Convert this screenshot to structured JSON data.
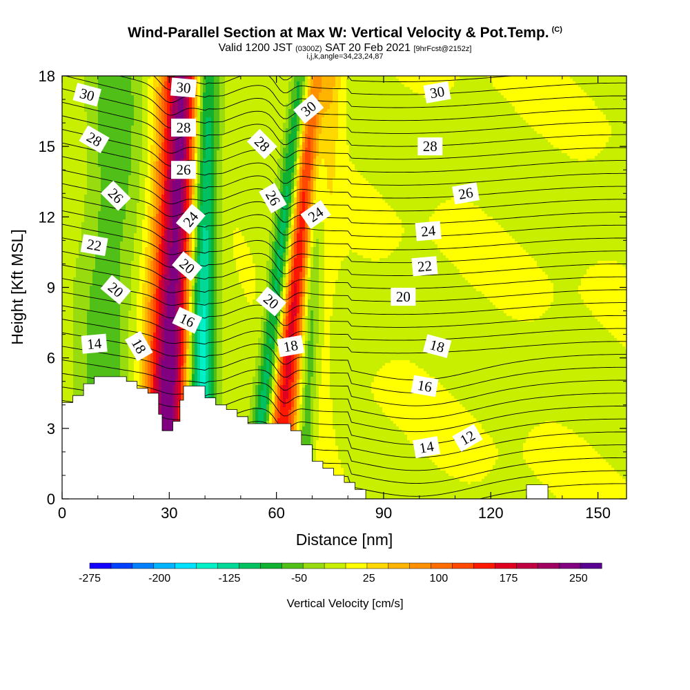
{
  "header": {
    "title": "Wind-Parallel Section at Max W: Vertical Velocity & Pot.Temp.",
    "copyright": "(C)",
    "valid_prefix": "Valid 1200 JST",
    "valid_utc": "(0300Z)",
    "valid_date": "SAT 20 Feb 2021",
    "forecast": "[9hrFcst@2152z]",
    "indices": "i,j,k,angle=34,23,24,87"
  },
  "colors": {
    "bands": [
      "#1400ff",
      "#0040ff",
      "#0080ff",
      "#00b4ff",
      "#00e0ff",
      "#00f0c8",
      "#00d898",
      "#00c060",
      "#10b030",
      "#50c018",
      "#98dc10",
      "#c8ee00",
      "#ffff00",
      "#ffd800",
      "#ffb400",
      "#ff9000",
      "#ff6c00",
      "#ff4800",
      "#ff1800",
      "#e00020",
      "#c00040",
      "#a00060",
      "#800080",
      "#580090"
    ],
    "terrain": "#ffffff",
    "contour": "#000000"
  },
  "chart_data": {
    "type": "heatmap",
    "xlabel": "Distance [nm]",
    "ylabel": "Height [Kft MSL]",
    "xlim": [
      0,
      158
    ],
    "ylim": [
      0,
      18
    ],
    "xticks": [
      0,
      30,
      60,
      90,
      120,
      150
    ],
    "yticks": [
      0,
      3,
      6,
      9,
      12,
      15,
      18
    ],
    "colorbar": {
      "label": "Vertical Velocity [cm/s]",
      "min": -275,
      "max": 275,
      "step": 25,
      "tick_values": [
        -275,
        -200,
        -125,
        -50,
        25,
        100,
        175,
        250
      ],
      "tick_labels": [
        "-275",
        "-200",
        "-125",
        "-50",
        "25",
        "100",
        "175",
        "250"
      ]
    },
    "updraft_bands": [
      {
        "x_at_0": 28,
        "tilt_nm_per_kft": 0.35,
        "peak_cm_s": 275,
        "width_nm": 6
      },
      {
        "x_at_0": 58,
        "tilt_nm_per_kft": 0.75,
        "peak_cm_s": 150,
        "width_nm": 4
      },
      {
        "x_at_0": 65,
        "tilt_nm_per_kft": 0.4,
        "peak_cm_s": 110,
        "width_nm": 5
      }
    ],
    "downdraft_bands": [
      {
        "x_at_0": 38,
        "tilt_nm_per_kft": 0.1,
        "peak_cm_s": -180,
        "width_nm": 4
      },
      {
        "x_at_0": 54,
        "tilt_nm_per_kft": 0.75,
        "peak_cm_s": -150,
        "width_nm": 3
      },
      {
        "x_at_0": 67,
        "tilt_nm_per_kft": 0.3,
        "peak_cm_s": -160,
        "width_nm": 3
      },
      {
        "x_at_0": 10,
        "tilt_nm_per_kft": 0.3,
        "peak_cm_s": -60,
        "width_nm": 8
      }
    ],
    "terrain_kft": [
      [
        0,
        4.1
      ],
      [
        3,
        4.1
      ],
      [
        3,
        4.4
      ],
      [
        6,
        4.4
      ],
      [
        6,
        4.9
      ],
      [
        9,
        4.9
      ],
      [
        9,
        5.2
      ],
      [
        18,
        5.2
      ],
      [
        18,
        5.0
      ],
      [
        21,
        5.0
      ],
      [
        21,
        4.7
      ],
      [
        24,
        4.7
      ],
      [
        24,
        4.5
      ],
      [
        27,
        4.5
      ],
      [
        27,
        3.6
      ],
      [
        28,
        3.6
      ],
      [
        28,
        2.9
      ],
      [
        31,
        2.9
      ],
      [
        31,
        3.3
      ],
      [
        33,
        3.3
      ],
      [
        33,
        4.2
      ],
      [
        34,
        4.2
      ],
      [
        34,
        4.8
      ],
      [
        40,
        4.8
      ],
      [
        40,
        4.3
      ],
      [
        43,
        4.3
      ],
      [
        43,
        4.0
      ],
      [
        46,
        4.0
      ],
      [
        46,
        3.8
      ],
      [
        49,
        3.8
      ],
      [
        49,
        3.5
      ],
      [
        52,
        3.5
      ],
      [
        52,
        3.2
      ],
      [
        64,
        3.2
      ],
      [
        64,
        2.9
      ],
      [
        67,
        2.9
      ],
      [
        67,
        2.3
      ],
      [
        70,
        2.3
      ],
      [
        70,
        1.6
      ],
      [
        73,
        1.6
      ],
      [
        73,
        1.3
      ],
      [
        76,
        1.3
      ],
      [
        76,
        1.0
      ],
      [
        79,
        1.0
      ],
      [
        79,
        0.7
      ],
      [
        82,
        0.7
      ],
      [
        82,
        0.4
      ],
      [
        85,
        0.4
      ],
      [
        85,
        0.0
      ],
      [
        158,
        0.0
      ]
    ],
    "terrain_right_kft": [
      [
        130,
        0.0
      ],
      [
        130,
        0.6
      ],
      [
        136,
        0.6
      ],
      [
        136,
        0.0
      ]
    ],
    "potential_temperature_labels": [
      {
        "text": "30",
        "x": 7,
        "y": 17.2,
        "rot": 15
      },
      {
        "text": "28",
        "x": 9,
        "y": 15.3,
        "rot": 30
      },
      {
        "text": "26",
        "x": 15,
        "y": 12.9,
        "rot": 45
      },
      {
        "text": "22",
        "x": 9,
        "y": 10.8,
        "rot": 10
      },
      {
        "text": "20",
        "x": 15,
        "y": 8.9,
        "rot": 40
      },
      {
        "text": "14",
        "x": 9,
        "y": 6.6,
        "rot": -5
      },
      {
        "text": "18",
        "x": 21.5,
        "y": 6.5,
        "rot": 60
      },
      {
        "text": "30",
        "x": 34,
        "y": 17.5,
        "rot": 5
      },
      {
        "text": "28",
        "x": 34,
        "y": 15.8,
        "rot": 0
      },
      {
        "text": "26",
        "x": 34,
        "y": 14.0,
        "rot": 0
      },
      {
        "text": "24",
        "x": 36,
        "y": 11.9,
        "rot": -50
      },
      {
        "text": "20",
        "x": 35,
        "y": 9.9,
        "rot": 40
      },
      {
        "text": "16",
        "x": 35,
        "y": 7.6,
        "rot": 25
      },
      {
        "text": "30",
        "x": 69,
        "y": 16.6,
        "rot": -40
      },
      {
        "text": "28",
        "x": 56,
        "y": 15.1,
        "rot": 45
      },
      {
        "text": "26",
        "x": 59,
        "y": 12.8,
        "rot": 60
      },
      {
        "text": "24",
        "x": 71,
        "y": 12.1,
        "rot": -35
      },
      {
        "text": "20",
        "x": 58.5,
        "y": 8.4,
        "rot": 40
      },
      {
        "text": "18",
        "x": 64,
        "y": 6.5,
        "rot": -10
      },
      {
        "text": "30",
        "x": 105,
        "y": 17.3,
        "rot": -10
      },
      {
        "text": "28",
        "x": 103,
        "y": 15.0,
        "rot": 0
      },
      {
        "text": "26",
        "x": 113,
        "y": 13.0,
        "rot": -10
      },
      {
        "text": "24",
        "x": 102.5,
        "y": 11.4,
        "rot": -5
      },
      {
        "text": "22",
        "x": 101.5,
        "y": 9.9,
        "rot": -5
      },
      {
        "text": "20",
        "x": 95.5,
        "y": 8.6,
        "rot": 0
      },
      {
        "text": "18",
        "x": 105,
        "y": 6.5,
        "rot": 15
      },
      {
        "text": "16",
        "x": 101.5,
        "y": 4.8,
        "rot": 10
      },
      {
        "text": "14",
        "x": 102,
        "y": 2.2,
        "rot": -10
      },
      {
        "text": "12",
        "x": 113.5,
        "y": 2.6,
        "rot": -30
      }
    ]
  }
}
